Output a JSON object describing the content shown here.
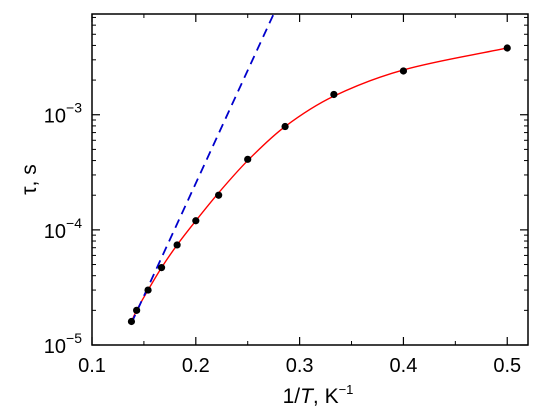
{
  "chart_data": {
    "type": "scatter",
    "title": "",
    "xlabel_parts": [
      "1/",
      "T",
      ", K",
      "−1"
    ],
    "ylabel": "τ, s",
    "xlim": [
      0.1,
      0.52
    ],
    "ylim": [
      1e-05,
      0.0075
    ],
    "yscale": "log",
    "grid": false,
    "x_ticks": [
      {
        "value": 0.1,
        "label": "0.1"
      },
      {
        "value": 0.2,
        "label": "0.2"
      },
      {
        "value": 0.3,
        "label": "0.3"
      },
      {
        "value": 0.4,
        "label": "0.4"
      },
      {
        "value": 0.5,
        "label": "0.5"
      }
    ],
    "y_ticks": [
      {
        "value": 1e-05,
        "base": "10",
        "exp": "−5"
      },
      {
        "value": 0.0001,
        "base": "10",
        "exp": "−4"
      },
      {
        "value": 0.001,
        "base": "10",
        "exp": "−3"
      }
    ],
    "series": [
      {
        "kind": "points",
        "color": "#000000",
        "x": [
          0.138,
          0.143,
          0.154,
          0.167,
          0.182,
          0.2,
          0.222,
          0.25,
          0.286,
          0.333,
          0.4,
          0.5
        ],
        "y": [
          1.6e-05,
          2e-05,
          3e-05,
          4.7e-05,
          7.4e-05,
          0.00012,
          0.0002,
          0.00041,
          0.00079,
          0.0015,
          0.0024,
          0.0038
        ]
      },
      {
        "kind": "fit",
        "color": "#ff0000",
        "style": "solid",
        "x": [
          0.138,
          0.143,
          0.154,
          0.167,
          0.182,
          0.2,
          0.222,
          0.25,
          0.286,
          0.333,
          0.4,
          0.5
        ],
        "y": [
          1.6e-05,
          2e-05,
          3e-05,
          4.7e-05,
          7.4e-05,
          0.00012,
          0.00021,
          0.0004,
          0.00079,
          0.00145,
          0.00245,
          0.0038
        ]
      },
      {
        "kind": "asymptote",
        "color": "#0000cc",
        "style": "dashed",
        "x": [
          0.138,
          0.275
        ],
        "y": [
          1.55e-05,
          0.0075
        ]
      }
    ]
  }
}
